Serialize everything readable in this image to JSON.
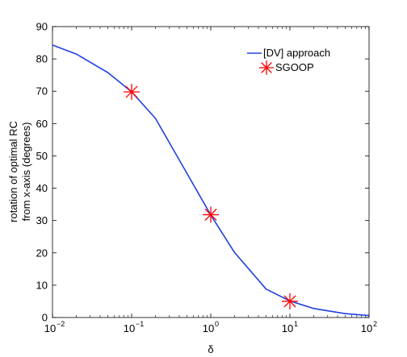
{
  "chart_data": {
    "type": "line",
    "xscale": "log",
    "xlim": [
      0.01,
      100
    ],
    "ylim": [
      0,
      90
    ],
    "xlabel": "δ",
    "ylabel": [
      "rotation of optimal RC",
      "from x-axis (degrees)"
    ],
    "x_tick_labels": [
      {
        "base": "10",
        "exp": "−2",
        "value": 0.01
      },
      {
        "base": "10",
        "exp": "−1",
        "value": 0.1
      },
      {
        "base": "10",
        "exp": "0",
        "value": 1
      },
      {
        "base": "10",
        "exp": "1",
        "value": 10
      },
      {
        "base": "10",
        "exp": "2",
        "value": 100
      }
    ],
    "y_ticks": [
      0,
      10,
      20,
      30,
      40,
      50,
      60,
      70,
      80,
      90
    ],
    "grid": false,
    "legend_position": "top-right",
    "series": [
      {
        "name": "[DV] approach",
        "type": "line",
        "color": "#2040e0",
        "x": [
          0.01,
          0.02,
          0.05,
          0.1,
          0.2,
          0.5,
          1,
          2,
          5,
          10,
          20,
          50,
          100
        ],
        "y": [
          84.3,
          81.5,
          75.8,
          69.8,
          61.6,
          44.6,
          31.7,
          20.1,
          8.8,
          5.1,
          2.8,
          1.2,
          0.6
        ]
      },
      {
        "name": "SGOOP",
        "type": "scatter",
        "marker": "asterisk",
        "color": "#ff0000",
        "x": [
          0.1,
          1,
          10
        ],
        "y": [
          69.8,
          31.8,
          5.0
        ]
      }
    ]
  }
}
